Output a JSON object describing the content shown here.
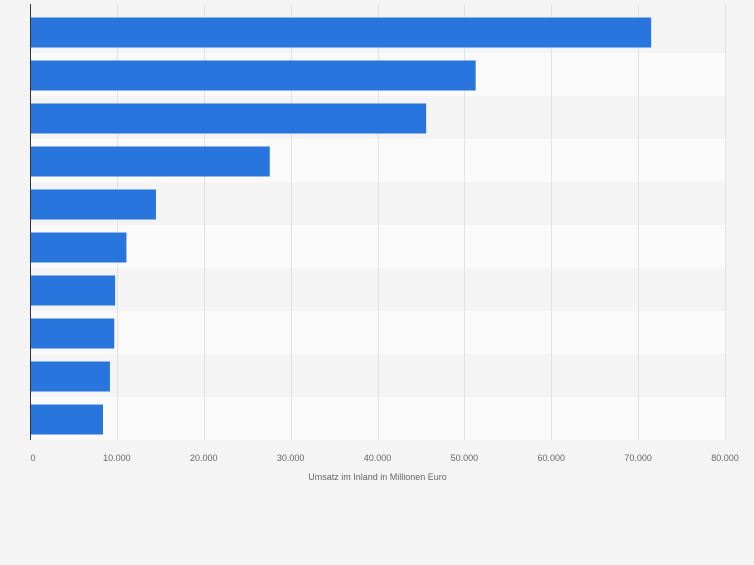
{
  "chart_data": {
    "type": "bar",
    "orientation": "horizontal",
    "title": "",
    "xlabel": "Umsatz im Inland in Millionen Euro",
    "ylabel": "",
    "categories": [
      "",
      "",
      "",
      "",
      "",
      "",
      "",
      "",
      "",
      ""
    ],
    "values": [
      71500,
      51300,
      45600,
      27600,
      14500,
      11100,
      9800,
      9700,
      9200,
      8400
    ],
    "xlim": [
      0,
      80000
    ],
    "xticks": [
      0,
      10000,
      20000,
      30000,
      40000,
      50000,
      60000,
      70000,
      80000
    ],
    "xtick_labels": [
      "0",
      "10.000",
      "20.000",
      "30.000",
      "40.000",
      "50.000",
      "60.000",
      "70.000",
      "80.000"
    ],
    "grid": true,
    "legend": "none",
    "colors": {
      "bar": "#2876dd",
      "background": "#f4f4f4",
      "band_light": "#fafafa",
      "band_dark": "#f4f4f4",
      "grid": "#e2e2e2",
      "axis": "#333333",
      "text": "#666666"
    }
  }
}
